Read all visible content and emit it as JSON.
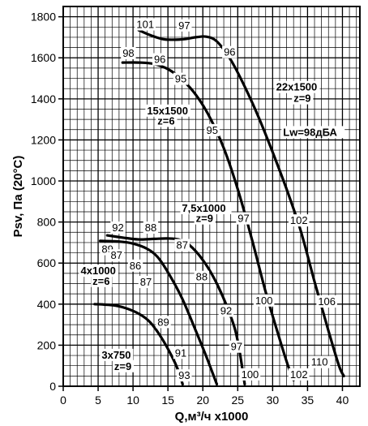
{
  "chart_data": {
    "type": "line",
    "xlabel": "Q,м³/ч x1000",
    "ylabel": "Psv, Па (20°С)",
    "xlim": [
      0,
      42.5
    ],
    "ylim": [
      0,
      1850
    ],
    "x_ticks": [
      0,
      5,
      10,
      15,
      20,
      25,
      30,
      35,
      40
    ],
    "y_ticks": [
      0,
      200,
      400,
      600,
      800,
      1000,
      1200,
      1400,
      1600,
      1800
    ],
    "grid": true,
    "x_minor_step": 1,
    "y_minor_step": 50,
    "annotation": "Lw=98дБА",
    "series": [
      {
        "name": "3x750",
        "label_lines": [
          "3x750",
          "z=9"
        ],
        "points": [
          [
            4.5,
            400
          ],
          [
            7,
            395
          ],
          [
            9,
            380
          ],
          [
            11,
            350
          ],
          [
            12.5,
            310
          ],
          [
            14,
            240
          ],
          [
            15.5,
            150
          ],
          [
            16.5,
            75
          ],
          [
            17.1,
            10
          ]
        ],
        "noise_values": []
      },
      {
        "name": "4x1000",
        "label_lines": [
          "4x1000",
          "z=6"
        ],
        "points": [
          [
            5.3,
            708
          ],
          [
            8,
            705
          ],
          [
            10,
            695
          ],
          [
            12,
            670
          ],
          [
            13.5,
            630
          ],
          [
            15,
            555
          ],
          [
            17,
            430
          ],
          [
            19,
            270
          ],
          [
            20.5,
            145
          ],
          [
            22,
            10
          ]
        ],
        "noise_values": [
          "89",
          "87",
          "86",
          "87",
          "89",
          "91",
          "93"
        ]
      },
      {
        "name": "7,5x1000",
        "label_lines": [
          "7,5x1000",
          "z=9"
        ],
        "points": [
          [
            6.3,
            735
          ],
          [
            9,
            722
          ],
          [
            11,
            715
          ],
          [
            13,
            718
          ],
          [
            15,
            720
          ],
          [
            16.5,
            715
          ],
          [
            18,
            690
          ],
          [
            20,
            615
          ],
          [
            22,
            500
          ],
          [
            24,
            340
          ],
          [
            25,
            220
          ],
          [
            26,
            10
          ]
        ],
        "noise_values": [
          "92",
          "88",
          "87",
          "88",
          "92",
          "97",
          "100"
        ]
      },
      {
        "name": "15x1500",
        "label_lines": [
          "15x1500",
          "z=6"
        ],
        "points": [
          [
            8.5,
            1577
          ],
          [
            11,
            1577
          ],
          [
            13,
            1570
          ],
          [
            15,
            1545
          ],
          [
            17,
            1495
          ],
          [
            19,
            1420
          ],
          [
            21,
            1310
          ],
          [
            23,
            1160
          ],
          [
            25,
            960
          ],
          [
            27,
            720
          ],
          [
            29,
            460
          ],
          [
            31,
            230
          ],
          [
            32.3,
            90
          ],
          [
            33,
            30
          ]
        ],
        "noise_values": [
          "98",
          "96",
          "95",
          "95",
          "97",
          "100",
          "102"
        ]
      },
      {
        "name": "22x1500",
        "label_lines": [
          "22x1500",
          "z=9"
        ],
        "points": [
          [
            10.8,
            1735
          ],
          [
            12.5,
            1710
          ],
          [
            14.5,
            1690
          ],
          [
            17,
            1690
          ],
          [
            19,
            1700
          ],
          [
            20.5,
            1703
          ],
          [
            22,
            1680
          ],
          [
            24,
            1590
          ],
          [
            26,
            1460
          ],
          [
            28,
            1310
          ],
          [
            30,
            1140
          ],
          [
            32,
            960
          ],
          [
            34,
            760
          ],
          [
            36,
            510
          ],
          [
            38,
            270
          ],
          [
            39.5,
            100
          ],
          [
            40.2,
            50
          ]
        ],
        "noise_values": [
          "101",
          "97",
          "96",
          "102",
          "106",
          "110"
        ]
      }
    ]
  }
}
